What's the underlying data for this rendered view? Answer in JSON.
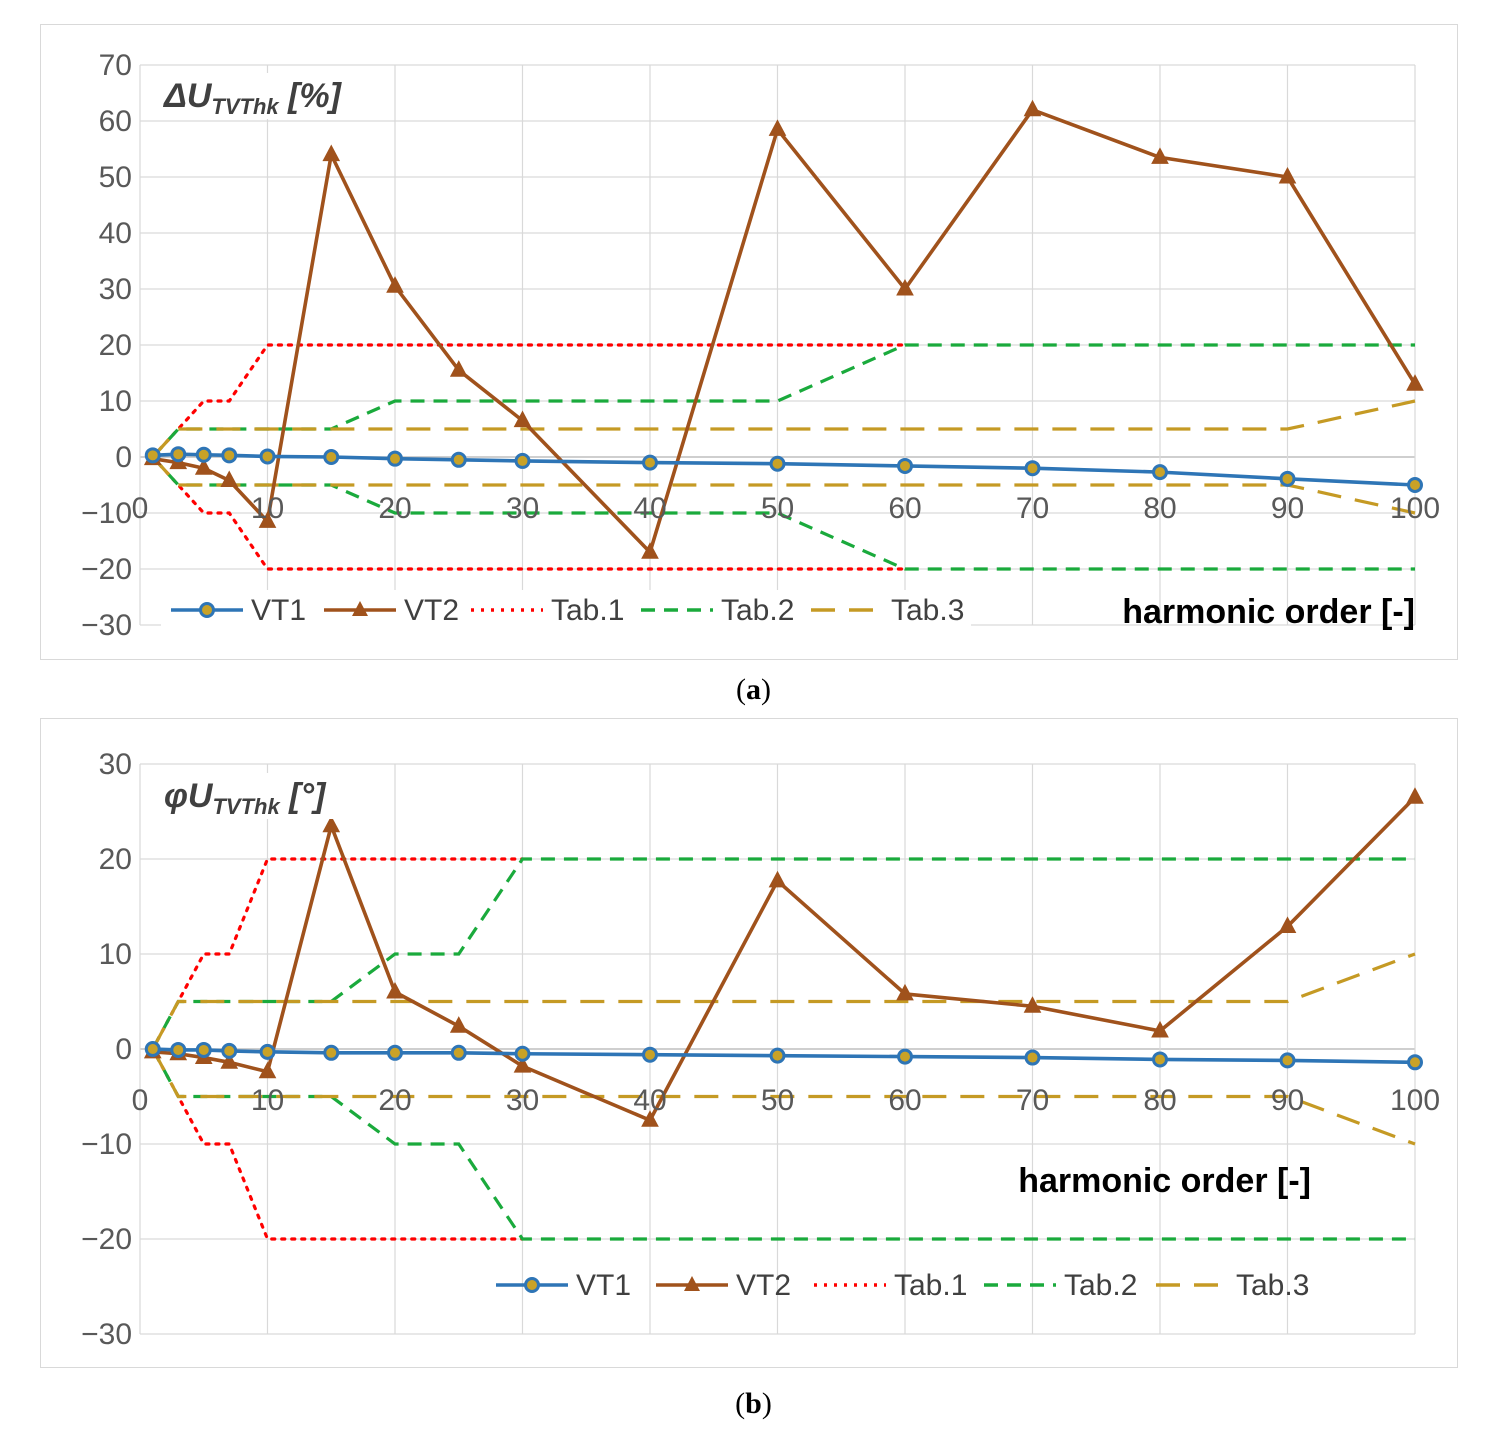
{
  "captions": {
    "a_letter": "a",
    "b_letter": "b"
  },
  "colors": {
    "VT1": "#2e75b6",
    "VT2": "#a0521c",
    "Tab.1": "#ff0000",
    "Tab.2": "#1aaa3c",
    "Tab.3": "#c59a24",
    "grid": "#d9d9d9",
    "axis": "#bfbfbf"
  },
  "chart_data": [
    {
      "id": "a",
      "type": "line",
      "title": "",
      "ylabel_prefix": "ΔU",
      "ylabel_sub": "TVThk",
      "ylabel_unit": " [%]",
      "xlabel": "harmonic order [-]",
      "xlim": [
        0,
        100
      ],
      "ylim": [
        -30,
        70
      ],
      "xticks": [
        0,
        10,
        20,
        30,
        40,
        50,
        60,
        70,
        80,
        90,
        100
      ],
      "yticks": [
        -30,
        -20,
        -10,
        0,
        10,
        20,
        30,
        40,
        50,
        60,
        70
      ],
      "legend": [
        "VT1",
        "VT2",
        "Tab.1",
        "Tab.2",
        "Tab.3"
      ],
      "series": [
        {
          "name": "VT1",
          "marker": "circle",
          "x": [
            1,
            3,
            5,
            7,
            10,
            15,
            20,
            25,
            30,
            40,
            50,
            60,
            70,
            80,
            90,
            100
          ],
          "y": [
            0.3,
            0.5,
            0.4,
            0.3,
            0.1,
            0,
            -0.3,
            -0.5,
            -0.7,
            -1,
            -1.2,
            -1.6,
            -2,
            -2.7,
            -3.9,
            -5
          ]
        },
        {
          "name": "VT2",
          "marker": "triangle",
          "x": [
            1,
            3,
            5,
            7,
            10,
            15,
            20,
            25,
            30,
            40,
            50,
            60,
            70,
            80,
            90,
            100
          ],
          "y": [
            -0.3,
            -1,
            -2,
            -4.2,
            -11.5,
            54,
            30.5,
            15.5,
            6.5,
            -17,
            58.5,
            30,
            62,
            53.5,
            50,
            13
          ]
        },
        {
          "name": "Tab.1",
          "style": "dotted",
          "lines": [
            {
              "x": [
                1,
                3,
                5,
                7,
                10,
                60
              ],
              "y": [
                0,
                5,
                10,
                10,
                20,
                20
              ]
            },
            {
              "x": [
                1,
                3,
                5,
                7,
                10,
                60
              ],
              "y": [
                0,
                -5,
                -10,
                -10,
                -20,
                -20
              ]
            }
          ]
        },
        {
          "name": "Tab.2",
          "style": "dashed",
          "lines": [
            {
              "x": [
                1,
                3,
                15,
                20,
                50,
                60,
                100
              ],
              "y": [
                0,
                5,
                5,
                10,
                10,
                20,
                20
              ]
            },
            {
              "x": [
                1,
                3,
                15,
                20,
                50,
                60,
                100
              ],
              "y": [
                0,
                -5,
                -5,
                -10,
                -10,
                -20,
                -20
              ]
            }
          ]
        },
        {
          "name": "Tab.3",
          "style": "longdash",
          "lines": [
            {
              "x": [
                1,
                3,
                90,
                100
              ],
              "y": [
                0,
                5,
                5,
                10
              ]
            },
            {
              "x": [
                1,
                3,
                90,
                100
              ],
              "y": [
                0,
                -5,
                -5,
                -10
              ]
            }
          ]
        }
      ]
    },
    {
      "id": "b",
      "type": "line",
      "title": "",
      "ylabel_prefix": "φU",
      "ylabel_sub": "TVThk",
      "ylabel_unit": " [°]",
      "xlabel": "harmonic order [-]",
      "xlim": [
        0,
        100
      ],
      "ylim": [
        -30,
        30
      ],
      "xticks": [
        0,
        10,
        20,
        30,
        40,
        50,
        60,
        70,
        80,
        90,
        100
      ],
      "yticks": [
        -30,
        -20,
        -10,
        0,
        10,
        20,
        30
      ],
      "legend": [
        "VT1",
        "VT2",
        "Tab.1",
        "Tab.2",
        "Tab.3"
      ],
      "series": [
        {
          "name": "VT1",
          "marker": "circle",
          "x": [
            1,
            3,
            5,
            7,
            10,
            15,
            20,
            25,
            30,
            40,
            50,
            60,
            70,
            80,
            90,
            100
          ],
          "y": [
            0,
            -0.1,
            -0.1,
            -0.2,
            -0.3,
            -0.4,
            -0.4,
            -0.4,
            -0.5,
            -0.6,
            -0.7,
            -0.8,
            -0.9,
            -1.1,
            -1.2,
            -1.4
          ]
        },
        {
          "name": "VT2",
          "marker": "triangle",
          "x": [
            1,
            3,
            5,
            7,
            10,
            15,
            20,
            25,
            30,
            40,
            50,
            60,
            70,
            80,
            90,
            100
          ],
          "y": [
            -0.3,
            -0.5,
            -0.9,
            -1.4,
            -2.4,
            23.5,
            6,
            2.4,
            -1.8,
            -7.5,
            17.7,
            5.8,
            4.5,
            1.9,
            12.9,
            26.5
          ]
        },
        {
          "name": "Tab.1",
          "style": "dotted",
          "lines": [
            {
              "x": [
                1,
                3,
                5,
                7,
                10,
                30
              ],
              "y": [
                0,
                5,
                10,
                10,
                20,
                20
              ]
            },
            {
              "x": [
                1,
                3,
                5,
                7,
                10,
                30
              ],
              "y": [
                0,
                -5,
                -10,
                -10,
                -20,
                -20
              ]
            }
          ]
        },
        {
          "name": "Tab.2",
          "style": "dashed",
          "lines": [
            {
              "x": [
                1,
                3,
                15,
                20,
                25,
                30,
                100
              ],
              "y": [
                0,
                5,
                5,
                10,
                10,
                20,
                20
              ]
            },
            {
              "x": [
                1,
                3,
                15,
                20,
                25,
                30,
                100
              ],
              "y": [
                0,
                -5,
                -5,
                -10,
                -10,
                -20,
                -20
              ]
            }
          ]
        },
        {
          "name": "Tab.3",
          "style": "longdash",
          "lines": [
            {
              "x": [
                1,
                3,
                90,
                100
              ],
              "y": [
                0,
                5,
                5,
                10
              ]
            },
            {
              "x": [
                1,
                3,
                90,
                100
              ],
              "y": [
                0,
                -5,
                -5,
                -10
              ]
            }
          ]
        }
      ]
    }
  ]
}
